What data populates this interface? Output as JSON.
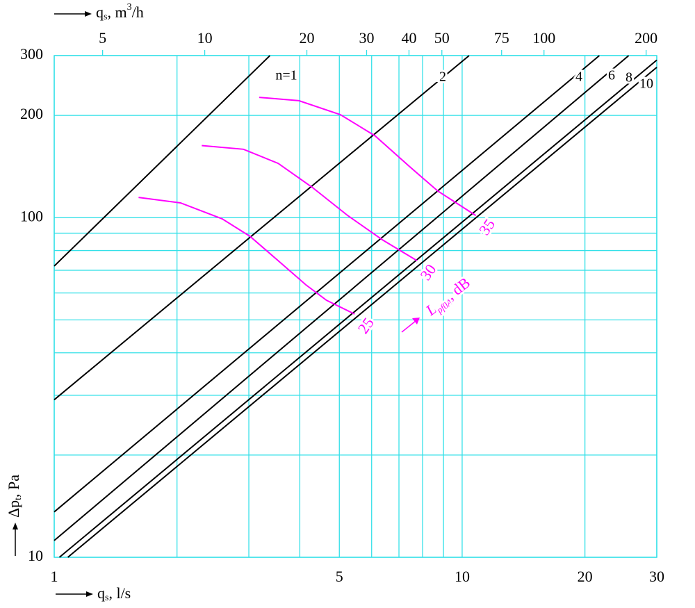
{
  "chart_data": {
    "type": "line",
    "x_label": {
      "base": "q",
      "sub": "s",
      "rest": ", l/s"
    },
    "x2_label": {
      "base": "q",
      "sub": "s",
      "rest": ", m",
      "sup": "3",
      "tail": "/h"
    },
    "y_label": {
      "base": "Δp",
      "sub": "t",
      "rest": ", Pa"
    },
    "log_x": true,
    "log_y": true,
    "grid": true,
    "grid_color": "#33e0e8",
    "xlim": [
      1,
      30
    ],
    "xticks": [
      1,
      5,
      10,
      20,
      30
    ],
    "x_minor_grid": [
      2,
      3,
      4,
      6,
      7,
      8,
      9
    ],
    "x2lim": [
      3.6,
      215
    ],
    "x2ticks": [
      5,
      10,
      20,
      30,
      40,
      50,
      75,
      100,
      200
    ],
    "ylim": [
      10,
      300
    ],
    "yticks": [
      10,
      100,
      200,
      300
    ],
    "y_minor_grid": [
      20,
      30,
      40,
      50,
      60,
      70,
      80,
      90
    ],
    "line_color": "#000000",
    "series": [
      {
        "name": "n=1",
        "x": [
          1,
          3.38
        ],
        "values": [
          72,
          300
        ]
      },
      {
        "name": "2",
        "x": [
          1,
          10.4
        ],
        "values": [
          29.1,
          300
        ]
      },
      {
        "name": "4",
        "x": [
          1,
          21.7
        ],
        "values": [
          13.6,
          300
        ]
      },
      {
        "name": "6",
        "x": [
          1,
          25.6
        ],
        "values": [
          11.2,
          300
        ]
      },
      {
        "name": "8",
        "x": [
          1.03,
          30
        ],
        "values": [
          10,
          291
        ]
      },
      {
        "name": "10",
        "x": [
          1.08,
          30
        ],
        "values": [
          10,
          277
        ]
      }
    ],
    "curve_color": "#ff00ff",
    "curves": [
      {
        "name": "25",
        "x": [
          1.61,
          2.04,
          2.58,
          3.02,
          3.54,
          4.14,
          4.65,
          5.45
        ],
        "values": [
          114.7,
          110.5,
          99.2,
          88.1,
          74.7,
          63.4,
          57.1,
          52.0
        ]
      },
      {
        "name": "30",
        "x": [
          2.3,
          2.91,
          3.54,
          4.3,
          5.24,
          6.37,
          7.75
        ],
        "values": [
          163,
          159,
          144.5,
          122.6,
          101.5,
          86.1,
          74.7
        ]
      },
      {
        "name": "35",
        "x": [
          3.18,
          3.98,
          5.03,
          6.12,
          7.45,
          8.72,
          10.8
        ],
        "values": [
          226,
          221,
          201,
          174,
          141,
          119.7,
          101.5
        ]
      }
    ],
    "curve_annotation": {
      "base": "L",
      "sub": "pf0A",
      "rest": ", dB"
    }
  }
}
